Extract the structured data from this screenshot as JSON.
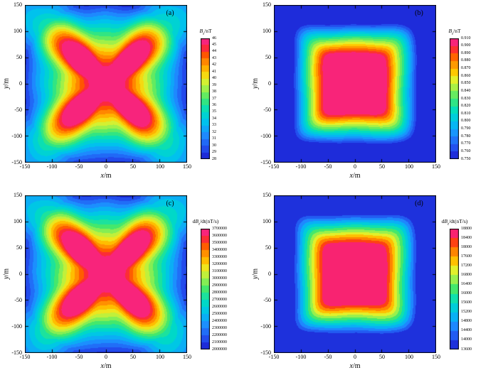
{
  "page": {
    "background": "#ffffff"
  },
  "colormap": {
    "stops": [
      {
        "t": 0.0,
        "c": "#1b1bd0"
      },
      {
        "t": 0.1,
        "c": "#2353f0"
      },
      {
        "t": 0.2,
        "c": "#1e8cff"
      },
      {
        "t": 0.3,
        "c": "#00c0f0"
      },
      {
        "t": 0.4,
        "c": "#00ddc0"
      },
      {
        "t": 0.5,
        "c": "#44e86c"
      },
      {
        "t": 0.58,
        "c": "#9cf04c"
      },
      {
        "t": 0.66,
        "c": "#e8f028"
      },
      {
        "t": 0.72,
        "c": "#ffc800"
      },
      {
        "t": 0.8,
        "c": "#ff8c00"
      },
      {
        "t": 0.87,
        "c": "#ff4e00"
      },
      {
        "t": 0.93,
        "c": "#fb1e4e"
      },
      {
        "t": 1.0,
        "c": "#f5289b"
      }
    ]
  },
  "chart_data": [
    {
      "type": "contour",
      "panel_label": "(a)",
      "pattern": "star",
      "x": {
        "var": "x",
        "unit": "/m",
        "min": -150,
        "max": 150,
        "ticks": [
          -150,
          -100,
          -50,
          0,
          50,
          100,
          150
        ]
      },
      "y": {
        "var": "y",
        "unit": "/m",
        "min": -150,
        "max": 150,
        "ticks": [
          -150,
          -100,
          -50,
          0,
          50,
          100,
          150
        ]
      },
      "colorbar_title": {
        "var": "B",
        "sub": "z",
        "unit": "/nT"
      },
      "colorbar_ticks": [
        "46",
        "45",
        "44",
        "43",
        "42",
        "41",
        "40",
        "39",
        "38",
        "37",
        "36",
        "35",
        "34",
        "33",
        "32",
        "31",
        "30",
        "29",
        "28"
      ],
      "value_min": 28,
      "value_max": 46,
      "description": "Bz field map: maximum at center with four concave arms extending toward the plot corners, minima at mid-edges"
    },
    {
      "type": "contour",
      "panel_label": "(b)",
      "pattern": "square",
      "x": {
        "var": "x",
        "unit": "/m",
        "min": -150,
        "max": 150,
        "ticks": [
          -150,
          -100,
          -50,
          0,
          50,
          100,
          150
        ]
      },
      "y": {
        "var": "y",
        "unit": "/m",
        "min": -150,
        "max": 150,
        "ticks": [
          -150,
          -100,
          -50,
          0,
          50,
          100,
          150
        ]
      },
      "colorbar_title": {
        "var": "B",
        "sub": "z",
        "unit": "/nT"
      },
      "colorbar_ticks": [
        "0.910",
        "0.900",
        "0.890",
        "0.880",
        "0.870",
        "0.860",
        "0.850",
        "0.840",
        "0.830",
        "0.820",
        "0.810",
        "0.800",
        "0.790",
        "0.780",
        "0.770",
        "0.760",
        "0.750"
      ],
      "value_min": 0.75,
      "value_max": 0.91,
      "description": "Bz field map: flat-topped square maximum about ±55 m wide, concentric square contours decaying to uniform low values outside"
    },
    {
      "type": "contour",
      "panel_label": "(c)",
      "pattern": "star",
      "x": {
        "var": "x",
        "unit": "/m",
        "min": -150,
        "max": 150,
        "ticks": [
          -150,
          -100,
          -50,
          0,
          50,
          100,
          150
        ]
      },
      "y": {
        "var": "y",
        "unit": "/m",
        "min": -150,
        "max": 150,
        "ticks": [
          -150,
          -100,
          -50,
          0,
          50,
          100,
          150
        ]
      },
      "colorbar_title": {
        "prefix": "d",
        "var": "B",
        "sub": "z",
        "unit": "/dt(nT/s)"
      },
      "colorbar_ticks": [
        "3700000",
        "3600000",
        "3500000",
        "3400000",
        "3300000",
        "3200000",
        "3100000",
        "3000000",
        "2900000",
        "2800000",
        "2700000",
        "2600000",
        "2500000",
        "2400000",
        "2300000",
        "2200000",
        "2100000",
        "2000000"
      ],
      "value_min": 2000000,
      "value_max": 3700000,
      "description": "dBz/dt map: maximum at center with four concave arms extending toward the plot corners, minima at mid-edges"
    },
    {
      "type": "contour",
      "panel_label": "(d)",
      "pattern": "square",
      "x": {
        "var": "x",
        "unit": "/m",
        "min": -150,
        "max": 150,
        "ticks": [
          -150,
          -100,
          -50,
          0,
          50,
          100,
          150
        ]
      },
      "y": {
        "var": "y",
        "unit": "/m",
        "min": -150,
        "max": 150,
        "ticks": [
          -150,
          -100,
          -50,
          0,
          50,
          100,
          150
        ]
      },
      "colorbar_title": {
        "prefix": "d",
        "var": "B",
        "sub": "z",
        "unit": "/dt(nT/s)"
      },
      "colorbar_ticks": [
        "18800",
        "18400",
        "18000",
        "17600",
        "17200",
        "16800",
        "16400",
        "16000",
        "15600",
        "15200",
        "14800",
        "14400",
        "14000",
        "13600"
      ],
      "value_min": 13600,
      "value_max": 18800,
      "description": "dBz/dt map: flat-topped square maximum about ±55 m wide, concentric square contours decaying to uniform low values outside"
    }
  ]
}
